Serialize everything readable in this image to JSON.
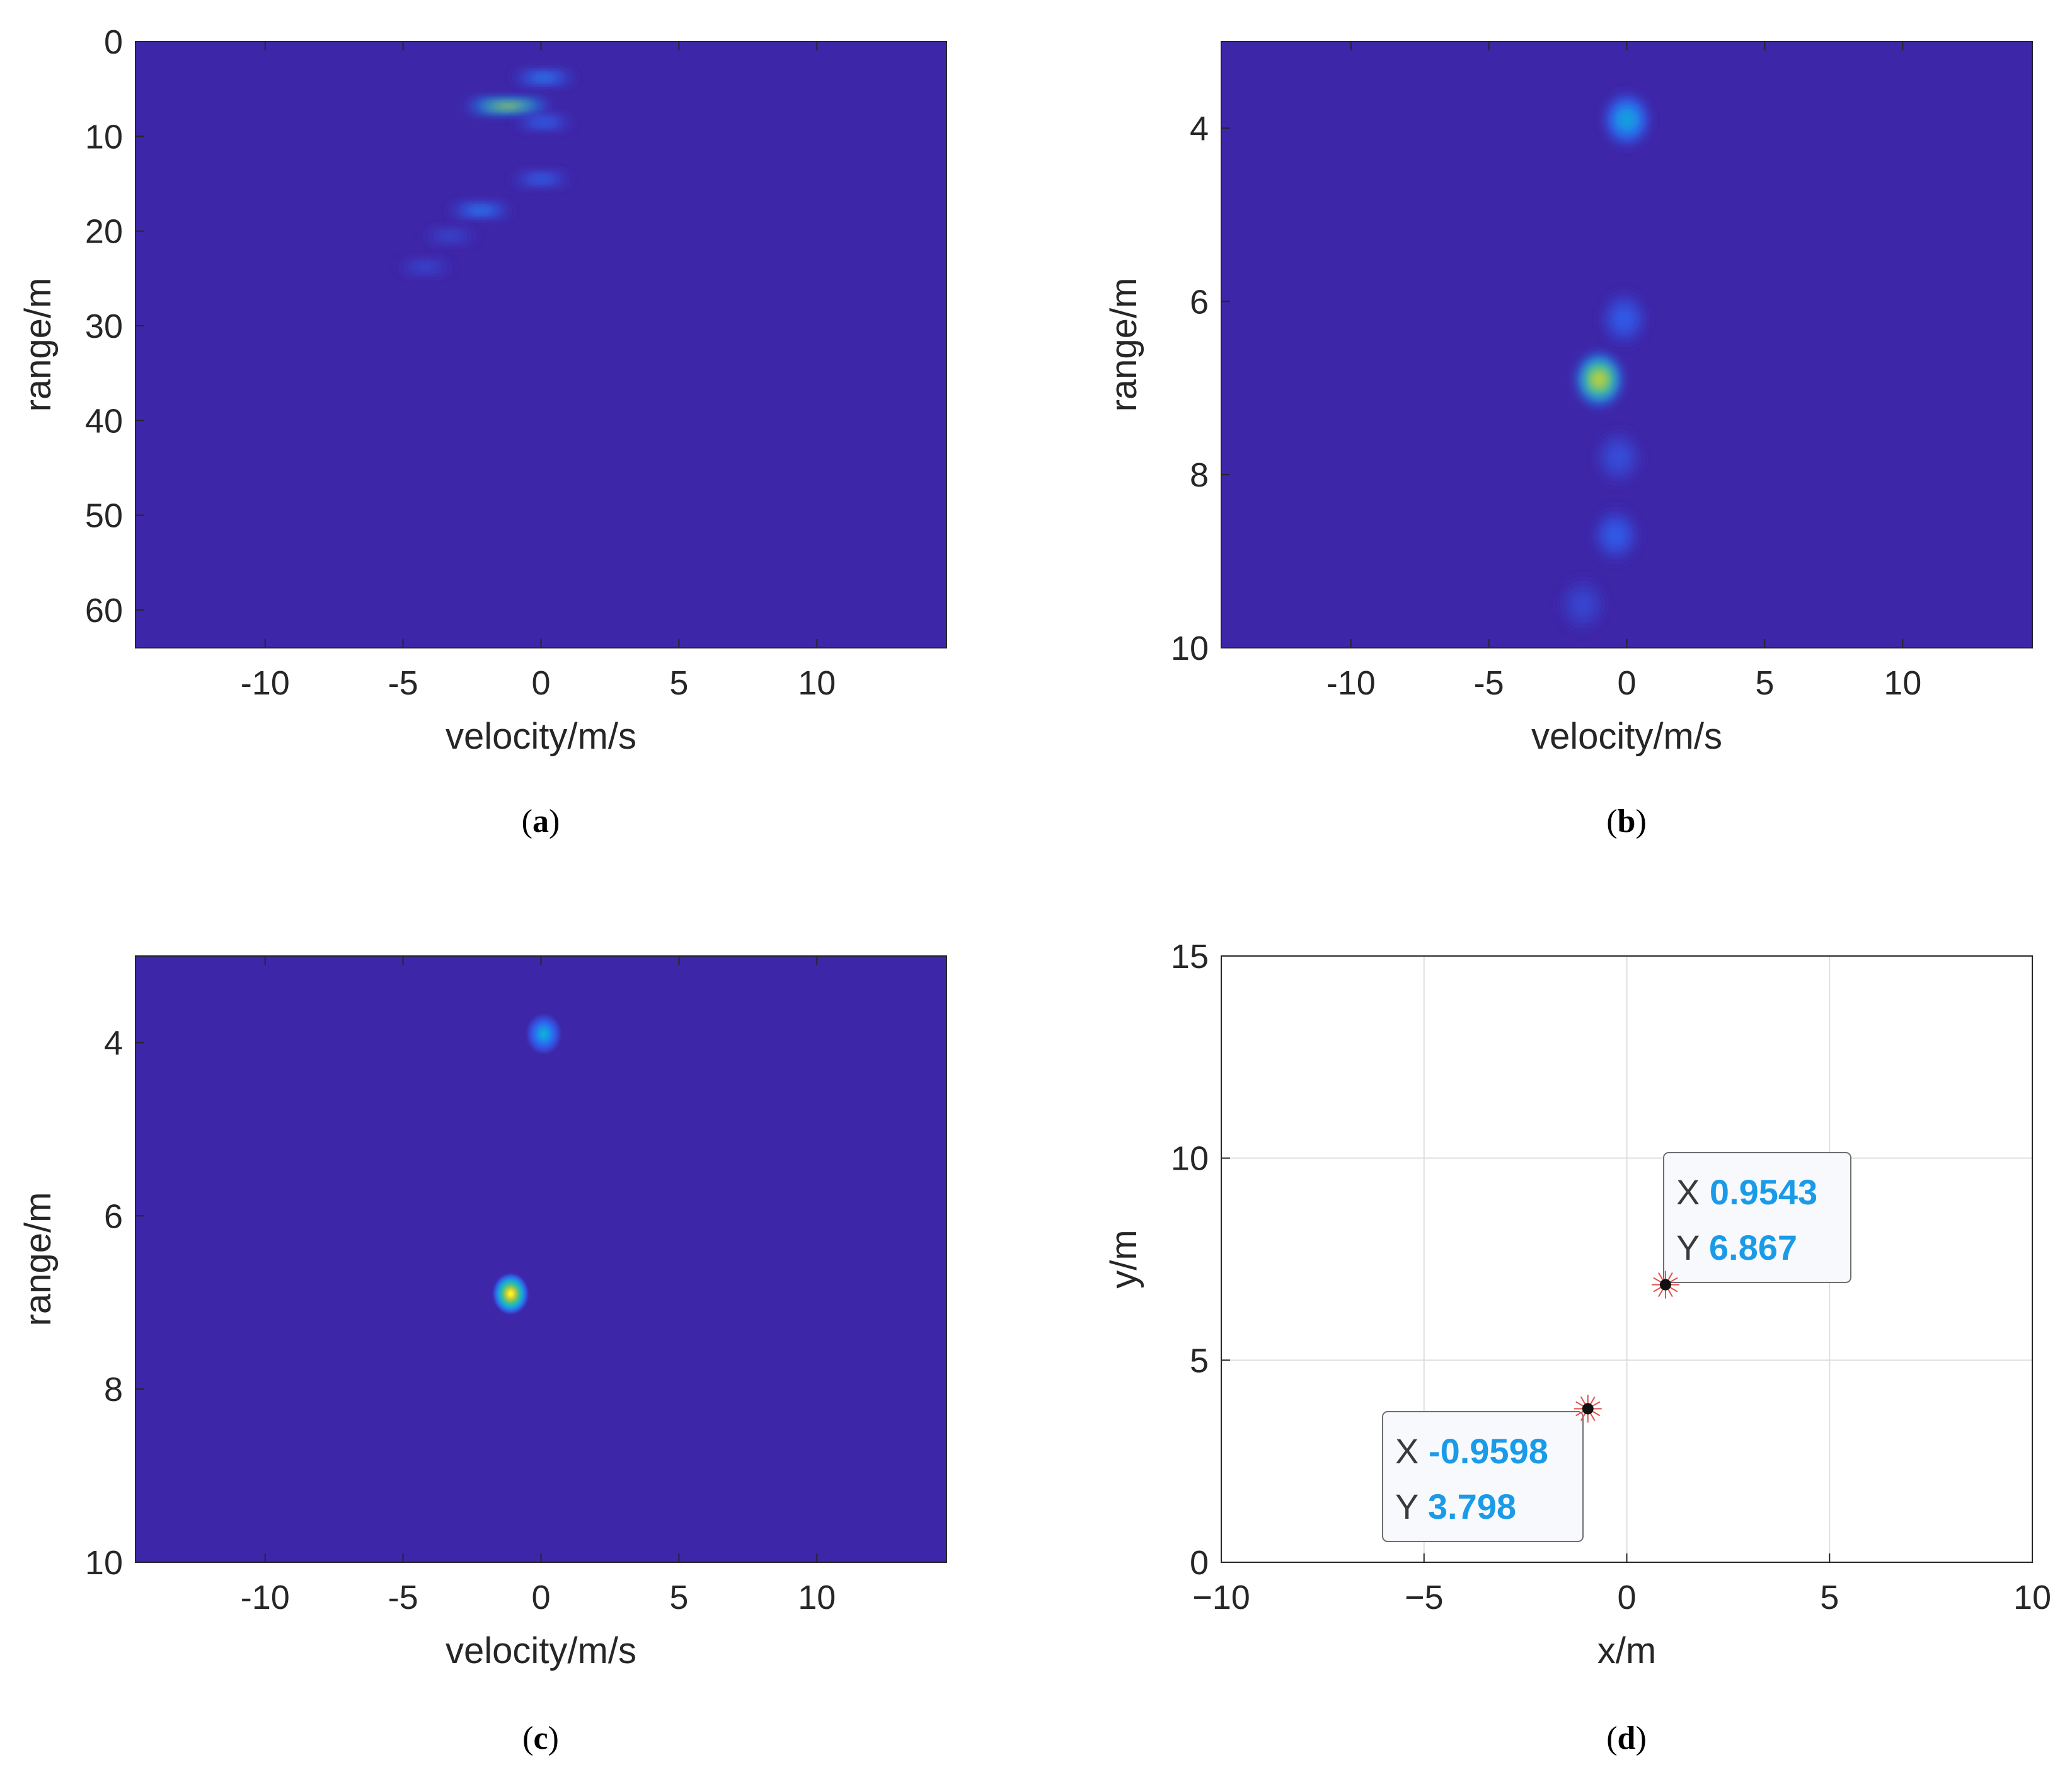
{
  "chart_data": [
    {
      "type": "heatmap",
      "panel_label": "a",
      "xlabel": "velocity/m/s",
      "ylabel": "range/m",
      "xlim": [
        -14.7,
        14.7
      ],
      "ylim": [
        0,
        64
      ],
      "y_reversed": true,
      "xticks": [
        -10,
        -5,
        0,
        5,
        10
      ],
      "yticks": [
        0,
        10,
        20,
        30,
        40,
        50,
        60
      ],
      "xtick_labels": [
        "-10",
        "-5",
        "0",
        "5",
        "10"
      ],
      "ytick_labels": [
        "0",
        "10",
        "20",
        "30",
        "40",
        "50",
        "60"
      ],
      "colormap": "parula",
      "background_color": "#3e26a8",
      "grid": false,
      "hotspots": [
        {
          "x": -1.2,
          "y": 6.8,
          "intensity": 1.0
        },
        {
          "x": 0.1,
          "y": 3.8,
          "intensity": 0.35
        },
        {
          "x": 0.1,
          "y": 8.5,
          "intensity": 0.25
        },
        {
          "x": 0.0,
          "y": 14.5,
          "intensity": 0.25
        },
        {
          "x": -2.2,
          "y": 17.8,
          "intensity": 0.35
        },
        {
          "x": -3.3,
          "y": 20.5,
          "intensity": 0.15
        },
        {
          "x": -4.2,
          "y": 23.8,
          "intensity": 0.15
        }
      ]
    },
    {
      "type": "heatmap",
      "panel_label": "b",
      "xlabel": "velocity/m/s",
      "ylabel": "range/m",
      "xlim": [
        -14.7,
        14.7
      ],
      "ylim": [
        3,
        10
      ],
      "y_reversed": true,
      "xticks": [
        -10,
        -5,
        0,
        5,
        10
      ],
      "yticks": [
        4,
        6,
        8,
        10
      ],
      "xtick_labels": [
        "-10",
        "-5",
        "0",
        "5",
        "10"
      ],
      "ytick_labels": [
        "4",
        "6",
        "8",
        "10"
      ],
      "colormap": "parula",
      "background_color": "#3e26a8",
      "grid": false,
      "hotspots": [
        {
          "x": -1.0,
          "y": 6.9,
          "intensity": 1.0
        },
        {
          "x": 0.0,
          "y": 3.9,
          "intensity": 0.45
        },
        {
          "x": -0.1,
          "y": 6.2,
          "intensity": 0.2
        },
        {
          "x": -0.3,
          "y": 7.8,
          "intensity": 0.15
        },
        {
          "x": -0.4,
          "y": 8.7,
          "intensity": 0.2
        },
        {
          "x": -1.6,
          "y": 9.5,
          "intensity": 0.12
        }
      ]
    },
    {
      "type": "heatmap",
      "panel_label": "c",
      "xlabel": "velocity/m/s",
      "ylabel": "range/m",
      "xlim": [
        -14.7,
        14.7
      ],
      "ylim": [
        3,
        10
      ],
      "y_reversed": true,
      "xticks": [
        -10,
        -5,
        0,
        5,
        10
      ],
      "yticks": [
        4,
        6,
        8,
        10
      ],
      "xtick_labels": [
        "-10",
        "-5",
        "0",
        "5",
        "10"
      ],
      "ytick_labels": [
        "4",
        "6",
        "8",
        "10"
      ],
      "colormap": "parula",
      "background_color": "#3e26a8",
      "grid": false,
      "hotspots": [
        {
          "x": -1.1,
          "y": 6.9,
          "intensity": 1.0
        },
        {
          "x": 0.1,
          "y": 3.9,
          "intensity": 0.4
        }
      ]
    },
    {
      "type": "scatter",
      "panel_label": "d",
      "xlabel": "x/m",
      "ylabel": "y/m",
      "xlim": [
        -10,
        10
      ],
      "ylim": [
        0,
        15
      ],
      "xticks": [
        -10,
        -5,
        0,
        5,
        10
      ],
      "yticks": [
        0,
        5,
        10,
        15
      ],
      "xtick_labels": [
        "−10",
        "−5",
        "0",
        "5",
        "10"
      ],
      "ytick_labels": [
        "0",
        "5",
        "10",
        "15"
      ],
      "grid": true,
      "points": [
        {
          "x": 0.9543,
          "y": 6.867
        },
        {
          "x": -0.9598,
          "y": 3.798
        }
      ],
      "datatips": [
        {
          "x_label": "X",
          "x_value": "0.9543",
          "y_label": "Y",
          "y_value": "6.867"
        },
        {
          "x_label": "X",
          "x_value": "-0.9598",
          "y_label": "Y",
          "y_value": "3.798"
        }
      ],
      "datatip_value_color": "#1a9be8"
    }
  ]
}
